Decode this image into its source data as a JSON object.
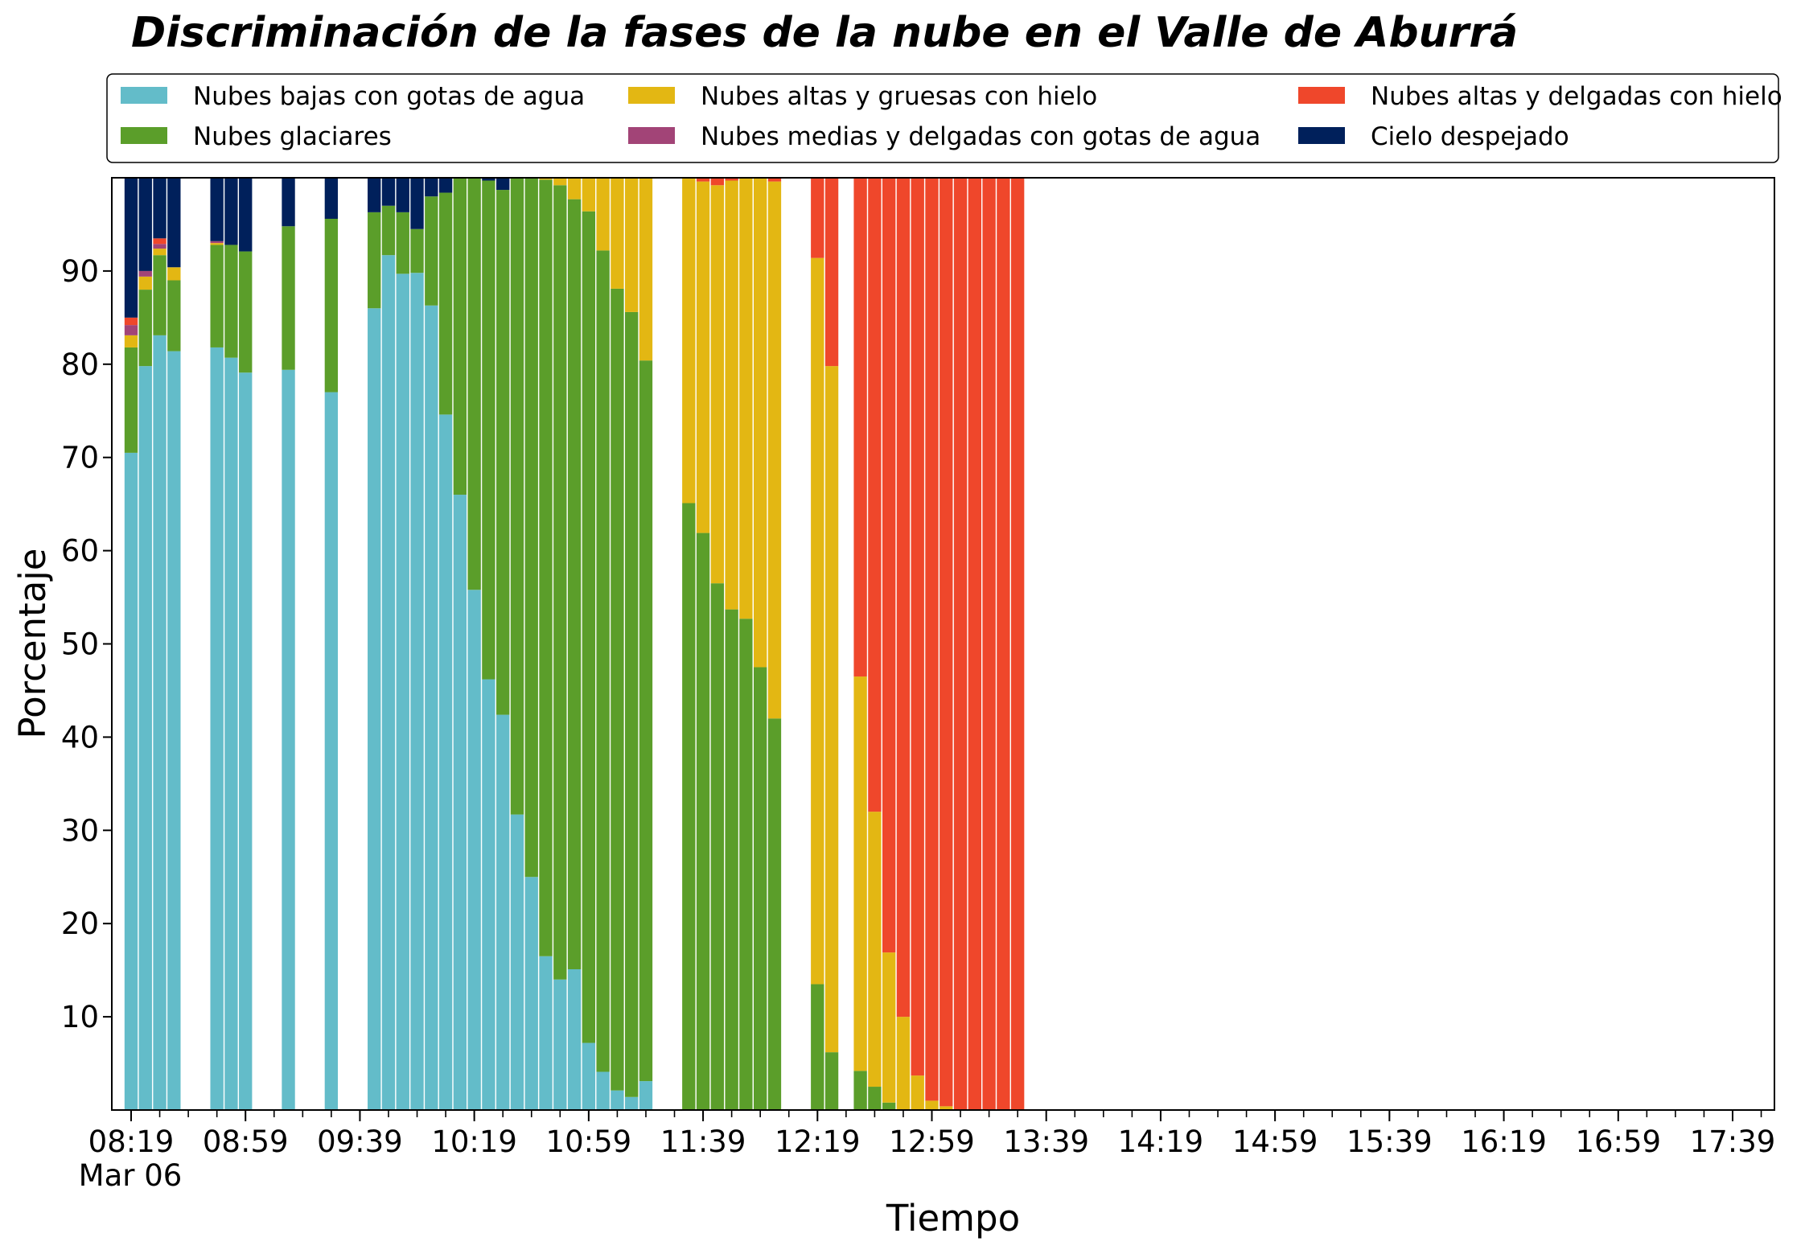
{
  "chart_data": {
    "type": "bar",
    "stacked": true,
    "title": "Discriminación de la fases de la nube en el Valle de Aburrá",
    "xlabel": "Tiempo",
    "ylabel": "Porcentaje",
    "ylim": [
      0,
      100
    ],
    "yticks": [
      10,
      20,
      30,
      40,
      50,
      60,
      70,
      80,
      90
    ],
    "date_label": "Mar 06",
    "xaxis": {
      "start": "08:19",
      "end": "17:59",
      "bar_interval_minutes": 5,
      "minor_tick_minutes": 10
    },
    "xtick_labels": [
      {
        "time": "08:19",
        "label": "08:19"
      },
      {
        "time": "08:59",
        "label": "08:59"
      },
      {
        "time": "09:39",
        "label": "09:39"
      },
      {
        "time": "10:19",
        "label": "10:19"
      },
      {
        "time": "10:59",
        "label": "10:59"
      },
      {
        "time": "11:39",
        "label": "11:39"
      },
      {
        "time": "12:19",
        "label": "12:19"
      },
      {
        "time": "12:59",
        "label": "12:59"
      },
      {
        "time": "13:39",
        "label": "13:39"
      },
      {
        "time": "14:19",
        "label": "14:19"
      },
      {
        "time": "14:59",
        "label": "14:59"
      },
      {
        "time": "15:39",
        "label": "15:39"
      },
      {
        "time": "16:19",
        "label": "16:19"
      },
      {
        "time": "16:59",
        "label": "16:59"
      },
      {
        "time": "17:39",
        "label": "17:39"
      }
    ],
    "legend_position": "top",
    "series": [
      {
        "name": "Nubes bajas con gotas de agua",
        "color": "#63bcc9"
      },
      {
        "name": "Nubes glaciares",
        "color": "#5b9e2a"
      },
      {
        "name": "Nubes altas y gruesas con hielo",
        "color": "#e3b713"
      },
      {
        "name": "Nubes medias y delgadas con gotas de agua",
        "color": "#a24477"
      },
      {
        "name": "Nubes altas y delgadas con hielo",
        "color": "#ef472b"
      },
      {
        "name": "Cielo despejado",
        "color": "#00205b"
      }
    ],
    "bars": [
      {
        "time": "08:19",
        "values": [
          70.5,
          11.3,
          1.3,
          1.1,
          0.8,
          15.0
        ]
      },
      {
        "time": "08:24",
        "values": [
          79.8,
          8.2,
          1.4,
          0.6,
          0.0,
          10.0
        ]
      },
      {
        "time": "08:29",
        "values": [
          83.1,
          8.6,
          0.7,
          0.5,
          0.6,
          6.5
        ]
      },
      {
        "time": "08:34",
        "values": [
          81.4,
          7.6,
          1.4,
          0.0,
          0.0,
          9.6
        ]
      },
      {
        "time": "08:49",
        "values": [
          81.8,
          11.0,
          0.2,
          0.2,
          0.0,
          6.8
        ]
      },
      {
        "time": "08:54",
        "values": [
          80.7,
          12.1,
          0.0,
          0.0,
          0.0,
          7.2
        ]
      },
      {
        "time": "08:59",
        "values": [
          79.1,
          13.0,
          0.0,
          0.0,
          0.0,
          7.9
        ]
      },
      {
        "time": "09:14",
        "values": [
          79.4,
          15.4,
          0.0,
          0.0,
          0.0,
          5.2
        ]
      },
      {
        "time": "09:29",
        "values": [
          77.0,
          18.6,
          0.0,
          0.0,
          0.0,
          4.4
        ]
      },
      {
        "time": "09:44",
        "values": [
          86.0,
          10.3,
          0.0,
          0.0,
          0.0,
          3.7
        ]
      },
      {
        "time": "09:49",
        "values": [
          91.7,
          5.3,
          0.0,
          0.0,
          0.0,
          3.0
        ]
      },
      {
        "time": "09:54",
        "values": [
          89.7,
          6.6,
          0.0,
          0.0,
          0.0,
          3.7
        ]
      },
      {
        "time": "09:59",
        "values": [
          89.8,
          4.7,
          0.0,
          0.0,
          0.0,
          5.5
        ]
      },
      {
        "time": "10:04",
        "values": [
          86.3,
          11.7,
          0.0,
          0.0,
          0.0,
          2.0
        ]
      },
      {
        "time": "10:09",
        "values": [
          74.6,
          23.8,
          0.0,
          0.0,
          0.0,
          1.6
        ]
      },
      {
        "time": "10:14",
        "values": [
          66.0,
          34.0,
          0.0,
          0.0,
          0.0,
          0.0
        ]
      },
      {
        "time": "10:19",
        "values": [
          55.8,
          44.2,
          0.0,
          0.0,
          0.0,
          0.0
        ]
      },
      {
        "time": "10:24",
        "values": [
          46.2,
          53.5,
          0.0,
          0.0,
          0.0,
          0.3
        ]
      },
      {
        "time": "10:29",
        "values": [
          42.4,
          56.3,
          0.0,
          0.0,
          0.0,
          1.3
        ]
      },
      {
        "time": "10:34",
        "values": [
          31.7,
          68.3,
          0.0,
          0.0,
          0.0,
          0.0
        ]
      },
      {
        "time": "10:39",
        "values": [
          25.0,
          75.0,
          0.0,
          0.0,
          0.0,
          0.0
        ]
      },
      {
        "time": "10:44",
        "values": [
          16.5,
          83.3,
          0.2,
          0.0,
          0.0,
          0.0
        ]
      },
      {
        "time": "10:49",
        "values": [
          14.0,
          85.2,
          0.8,
          0.0,
          0.0,
          0.0
        ]
      },
      {
        "time": "10:54",
        "values": [
          15.1,
          82.6,
          2.3,
          0.0,
          0.0,
          0.0
        ]
      },
      {
        "time": "10:59",
        "values": [
          7.2,
          89.2,
          3.6,
          0.0,
          0.0,
          0.0
        ]
      },
      {
        "time": "11:04",
        "values": [
          4.1,
          88.1,
          7.8,
          0.0,
          0.0,
          0.0
        ]
      },
      {
        "time": "11:09",
        "values": [
          2.1,
          86.0,
          11.9,
          0.0,
          0.0,
          0.0
        ]
      },
      {
        "time": "11:14",
        "values": [
          1.4,
          84.2,
          14.4,
          0.0,
          0.0,
          0.0
        ]
      },
      {
        "time": "11:19",
        "values": [
          3.1,
          77.3,
          19.6,
          0.0,
          0.0,
          0.0
        ]
      },
      {
        "time": "11:34",
        "values": [
          0.0,
          65.1,
          34.9,
          0.0,
          0.0,
          0.0
        ]
      },
      {
        "time": "11:39",
        "values": [
          0.0,
          61.9,
          37.7,
          0.0,
          0.4,
          0.0
        ]
      },
      {
        "time": "11:44",
        "values": [
          0.0,
          56.5,
          42.7,
          0.0,
          0.8,
          0.0
        ]
      },
      {
        "time": "11:49",
        "values": [
          0.0,
          53.7,
          46.0,
          0.0,
          0.3,
          0.0
        ]
      },
      {
        "time": "11:54",
        "values": [
          0.0,
          52.7,
          47.3,
          0.0,
          0.0,
          0.0
        ]
      },
      {
        "time": "11:59",
        "values": [
          0.0,
          47.5,
          52.5,
          0.0,
          0.0,
          0.0
        ]
      },
      {
        "time": "12:04",
        "values": [
          0.0,
          42.0,
          57.6,
          0.0,
          0.4,
          0.0
        ]
      },
      {
        "time": "12:19",
        "values": [
          0.0,
          13.5,
          77.9,
          0.0,
          8.6,
          0.0
        ]
      },
      {
        "time": "12:24",
        "values": [
          0.0,
          6.2,
          73.6,
          0.0,
          20.2,
          0.0
        ]
      },
      {
        "time": "12:34",
        "values": [
          0.0,
          4.2,
          42.3,
          0.0,
          53.5,
          0.0
        ]
      },
      {
        "time": "12:39",
        "values": [
          0.0,
          2.5,
          29.5,
          0.0,
          68.0,
          0.0
        ]
      },
      {
        "time": "12:44",
        "values": [
          0.0,
          0.8,
          16.1,
          0.0,
          83.1,
          0.0
        ]
      },
      {
        "time": "12:49",
        "values": [
          0.0,
          0.0,
          10.0,
          0.0,
          90.0,
          0.0
        ]
      },
      {
        "time": "12:54",
        "values": [
          0.0,
          0.0,
          3.7,
          0.0,
          96.3,
          0.0
        ]
      },
      {
        "time": "12:59",
        "values": [
          0.0,
          0.0,
          1.0,
          0.0,
          99.0,
          0.0
        ]
      },
      {
        "time": "13:04",
        "values": [
          0.0,
          0.0,
          0.4,
          0.0,
          99.6,
          0.0
        ]
      },
      {
        "time": "13:09",
        "values": [
          0.0,
          0.0,
          0.0,
          0.0,
          100.0,
          0.0
        ]
      },
      {
        "time": "13:14",
        "values": [
          0.0,
          0.0,
          0.0,
          0.0,
          100.0,
          0.0
        ]
      },
      {
        "time": "13:19",
        "values": [
          0.0,
          0.0,
          0.0,
          0.0,
          100.0,
          0.0
        ]
      },
      {
        "time": "13:24",
        "values": [
          0.0,
          0.0,
          0.0,
          0.0,
          100.0,
          0.0
        ]
      },
      {
        "time": "13:29",
        "values": [
          0.0,
          0.0,
          0.0,
          0.0,
          100.0,
          0.0
        ]
      }
    ]
  }
}
